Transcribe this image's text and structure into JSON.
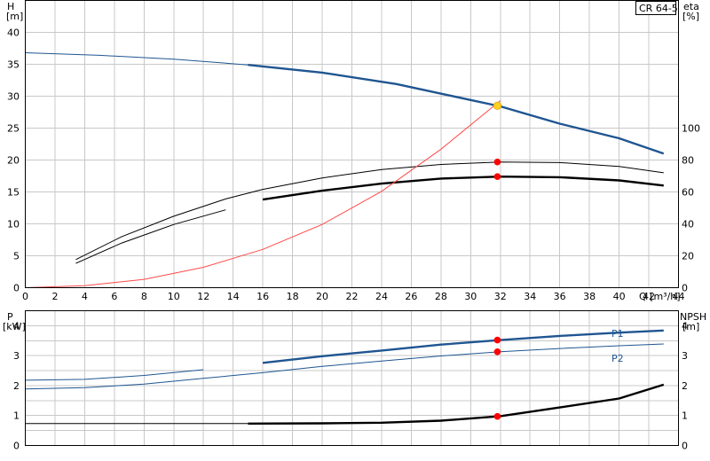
{
  "colors": {
    "blue": "#1f5591",
    "black": "#000000",
    "red": "#ff0000",
    "thin_red": "#ff4a4a",
    "marker_yellow": "#ffd21f",
    "grid": "#c8c8c8"
  },
  "chart_data": [
    {
      "type": "line",
      "label_box": "CR 64-5",
      "xlabel": "Q [m³/h]",
      "ylabel_left": [
        "H",
        "[m]"
      ],
      "ylabel_right": [
        "eta",
        "[%]"
      ],
      "grid": true,
      "xlim": [
        0,
        44
      ],
      "ylim": [
        0,
        45
      ],
      "y2lim": [
        0,
        45
      ],
      "x_ticks": [
        "0",
        "2",
        "4",
        "6",
        "8",
        "10",
        "12",
        "14",
        "16",
        "18",
        "20",
        "22",
        "24",
        "26",
        "28",
        "30",
        "32",
        "34",
        "36",
        "38",
        "40",
        "42",
        "44"
      ],
      "y_ticks": [
        "0",
        "5",
        "10",
        "15",
        "20",
        "25",
        "30",
        "35",
        "40"
      ],
      "y2_ticks": [
        {
          "label": "0",
          "at": 0
        },
        {
          "label": "20",
          "at": 5
        },
        {
          "label": "40",
          "at": 10
        },
        {
          "label": "60",
          "at": 15
        },
        {
          "label": "80",
          "at": 20
        },
        {
          "label": "100",
          "at": 25
        }
      ],
      "series": [
        {
          "kind": "head",
          "color": "#1f5591",
          "points": [
            [
              0,
              36.8
            ],
            [
              5,
              36.4
            ],
            [
              10,
              35.8
            ],
            [
              15,
              34.9
            ],
            [
              20,
              33.7
            ],
            [
              25,
              31.9
            ],
            [
              30,
              29.4
            ],
            [
              32,
              28.4
            ],
            [
              36,
              25.7
            ],
            [
              40,
              23.4
            ],
            [
              43,
              21.0
            ]
          ],
          "bold_from": 15
        },
        {
          "kind": "efficiency",
          "color": "#000000",
          "points": [
            [
              3.4,
              4.4
            ],
            [
              6.5,
              8.0
            ],
            [
              10,
              11.2
            ],
            [
              13.5,
              13.9
            ],
            [
              16,
              15.4
            ],
            [
              20,
              17.2
            ],
            [
              24,
              18.5
            ],
            [
              28,
              19.3
            ],
            [
              32,
              19.7
            ],
            [
              36,
              19.6
            ],
            [
              40,
              19.0
            ],
            [
              43,
              18.0
            ]
          ],
          "bold_from": 99
        },
        {
          "kind": "efficiency",
          "color": "#000000",
          "points": [
            [
              3.4,
              3.8
            ],
            [
              6.5,
              7.0
            ],
            [
              10,
              9.9
            ],
            [
              13.5,
              12.2
            ],
            [
              16,
              13.8
            ],
            [
              20,
              15.2
            ],
            [
              24,
              16.3
            ],
            [
              28,
              17.1
            ],
            [
              32,
              17.4
            ],
            [
              36,
              17.3
            ],
            [
              40,
              16.8
            ],
            [
              43,
              16.0
            ]
          ],
          "bold_from": 15
        },
        {
          "kind": "npsh_system",
          "color": "#ff4a4a",
          "points": [
            [
              0,
              0
            ],
            [
              4,
              0.3
            ],
            [
              8,
              1.3
            ],
            [
              12,
              3.2
            ],
            [
              16,
              6.0
            ],
            [
              20,
              9.9
            ],
            [
              24,
              15.1
            ],
            [
              28,
              21.7
            ],
            [
              32,
              29.3
            ]
          ],
          "bold_from": 99
        }
      ],
      "markers": [
        {
          "x": 31.8,
          "y": 28.5,
          "color": "#ffd21f"
        },
        {
          "x": 31.8,
          "y": 19.7,
          "color": "#ff0000"
        },
        {
          "x": 31.8,
          "y": 17.4,
          "color": "#ff0000"
        }
      ]
    },
    {
      "type": "line",
      "ylabel_left": [
        "P",
        "[kW]"
      ],
      "ylabel_right": [
        "NPSH",
        "[m]"
      ],
      "grid": true,
      "xlim": [
        0,
        44
      ],
      "ylim": [
        0,
        4.5
      ],
      "y_ticks": [
        "0",
        "1",
        "2",
        "3",
        "4"
      ],
      "y2_ticks": [
        "0",
        "1",
        "2",
        "3",
        "4"
      ],
      "series": [
        {
          "name": "P1",
          "kind": "power",
          "color": "#1f5591",
          "points": [
            [
              0,
              2.18
            ],
            [
              4,
              2.21
            ],
            [
              8,
              2.34
            ],
            [
              12,
              2.53
            ],
            [
              16,
              2.76
            ],
            [
              20,
              2.98
            ],
            [
              24,
              3.17
            ],
            [
              28,
              3.37
            ],
            [
              32,
              3.52
            ],
            [
              36,
              3.66
            ],
            [
              40,
              3.77
            ],
            [
              43,
              3.84
            ]
          ],
          "bold_from": 15
        },
        {
          "name": "P2",
          "kind": "power",
          "color": "#1f5591",
          "points": [
            [
              0,
              1.89
            ],
            [
              4,
              1.93
            ],
            [
              8,
              2.05
            ],
            [
              12,
              2.24
            ],
            [
              16,
              2.43
            ],
            [
              20,
              2.64
            ],
            [
              24,
              2.82
            ],
            [
              28,
              2.99
            ],
            [
              32,
              3.13
            ],
            [
              36,
              3.24
            ],
            [
              40,
              3.33
            ],
            [
              43,
              3.39
            ]
          ],
          "bold_from": 99
        },
        {
          "kind": "npsh",
          "color": "#000000",
          "points": [
            [
              0,
              0.73
            ],
            [
              4,
              0.73
            ],
            [
              8,
              0.73
            ],
            [
              12,
              0.73
            ],
            [
              15,
              0.73
            ],
            [
              20,
              0.74
            ],
            [
              24,
              0.76
            ],
            [
              28,
              0.83
            ],
            [
              32,
              0.98
            ],
            [
              36,
              1.27
            ],
            [
              40,
              1.57
            ],
            [
              43,
              2.03
            ]
          ],
          "bold_from": 15
        }
      ],
      "markers": [
        {
          "x": 31.8,
          "y": 3.52,
          "color": "#ff0000"
        },
        {
          "x": 31.8,
          "y": 3.13,
          "color": "#ff0000"
        },
        {
          "x": 31.8,
          "y": 0.97,
          "color": "#ff0000"
        }
      ]
    }
  ]
}
